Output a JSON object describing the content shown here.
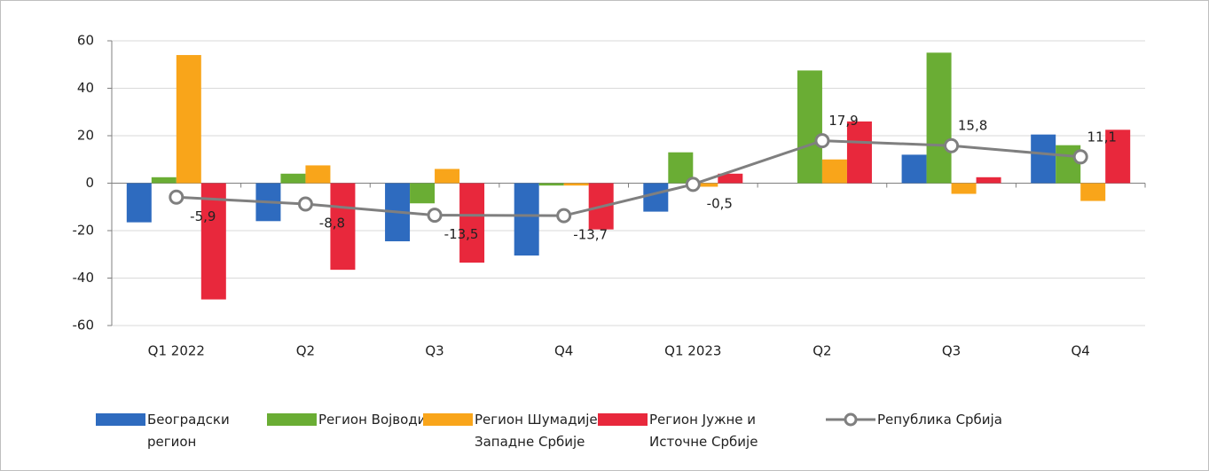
{
  "chart_data": {
    "type": "bar_line",
    "categories": [
      "Q1 2022",
      "Q2",
      "Q3",
      "Q4",
      "Q1 2023",
      "Q2",
      "Q3",
      "Q4"
    ],
    "ylim": [
      -60,
      60
    ],
    "yticks": [
      -60,
      -40,
      -20,
      0,
      20,
      40,
      60
    ],
    "grid": true,
    "series": [
      {
        "name": "Београдски регион",
        "color": "#2e6bbf",
        "type": "bar",
        "values": [
          -16.5,
          -16,
          -24.5,
          -30.5,
          -12,
          0,
          12,
          20.5
        ]
      },
      {
        "name": "Регион Војводине",
        "color": "#6aad34",
        "type": "bar",
        "values": [
          2.5,
          4,
          -8.5,
          -1,
          13,
          47.5,
          55,
          16
        ]
      },
      {
        "name": "Регион Шумадије и Западне Србије",
        "color": "#f9a51a",
        "type": "bar",
        "values": [
          54,
          7.5,
          6,
          -1,
          -1.5,
          10,
          -4.5,
          -7.5
        ]
      },
      {
        "name": "Регион Јужне и Источне Србије",
        "color": "#e8283c",
        "type": "bar",
        "values": [
          -49,
          -36.5,
          -33.5,
          -19.5,
          4,
          26,
          2.5,
          22.5
        ]
      },
      {
        "name": "Република Србија",
        "color": "#7f7f7f",
        "type": "line",
        "values": [
          -5.9,
          -8.8,
          -13.5,
          -13.7,
          -0.5,
          17.9,
          15.8,
          11.1
        ],
        "value_labels": [
          "-5,9",
          "-8,8",
          "-13,5",
          "-13,7",
          "-0,5",
          "17,9",
          "15,8",
          "11,1"
        ]
      }
    ]
  }
}
